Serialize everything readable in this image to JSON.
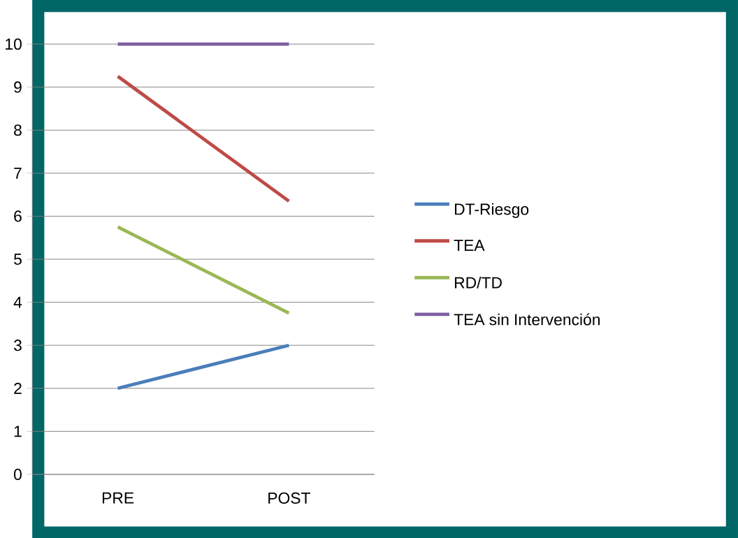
{
  "chart_data": {
    "type": "line",
    "categories": [
      "PRE",
      "POST"
    ],
    "series": [
      {
        "name": "DT-Riesgo",
        "color": "#4a7ebb",
        "values": [
          2,
          3
        ]
      },
      {
        "name": "TEA",
        "color": "#be4b48",
        "values": [
          9.25,
          6.35
        ]
      },
      {
        "name": "RD/TD",
        "color": "#98b954",
        "values": [
          5.75,
          3.75
        ]
      },
      {
        "name": "TEA sin Intervención",
        "color": "#7d60a0",
        "values": [
          10,
          10
        ]
      }
    ],
    "ylim": [
      0,
      10
    ],
    "yticks": [
      0,
      1,
      2,
      3,
      4,
      5,
      6,
      7,
      8,
      9,
      10
    ],
    "grid": "y",
    "legend": "right",
    "marker": "none",
    "line_style": "solid"
  }
}
